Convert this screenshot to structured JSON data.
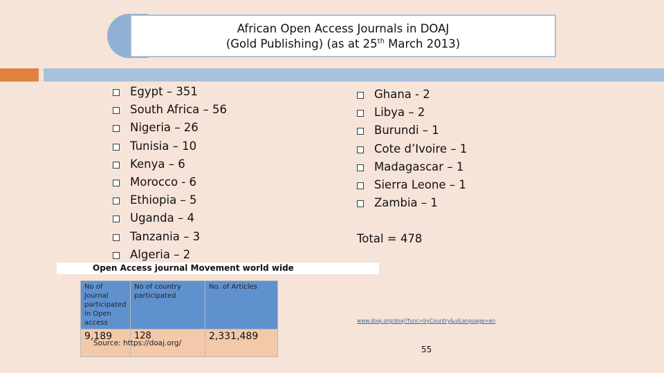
{
  "title": {
    "line1": "African Open Access Journals in DOAJ",
    "line2_pre": "(Gold Publishing) (as at  25",
    "line2_sup": "th",
    "line2_post": " March 2013)"
  },
  "left_list": [
    "Egypt – 351",
    "South Africa – 56",
    "Nigeria – 26",
    "Tunisia – 10",
    "Kenya – 6",
    "Morocco - 6",
    "Ethiopia – 5",
    "Uganda – 4",
    "Tanzania – 3",
    "Algeria – 2"
  ],
  "right_list": [
    "Ghana - 2",
    "Libya – 2",
    "Burundi – 1",
    "Cote d’Ivoire – 1",
    "Madagascar – 1",
    "Sierra Leone – 1",
    "Zambia – 1"
  ],
  "total": "Total = 478",
  "movement": {
    "heading": "Open Access journal Movement world wide",
    "headers": [
      "No of Journal participated in Open access",
      "No of country participated",
      "No. of Articles"
    ],
    "values": [
      "9,189",
      "128",
      "2,331,489"
    ],
    "source": "Source: https://doaj.org/"
  },
  "link_text": "www.doaj.org/doaj?func=byCountry&uiLanguage=en",
  "page_number": "55",
  "colors": {
    "background": "#f6e4d9",
    "accent_orange": "#e0813f",
    "accent_blue": "#a8c1dc",
    "table_header": "#5f91cf",
    "table_cell": "#f3c9a9"
  }
}
